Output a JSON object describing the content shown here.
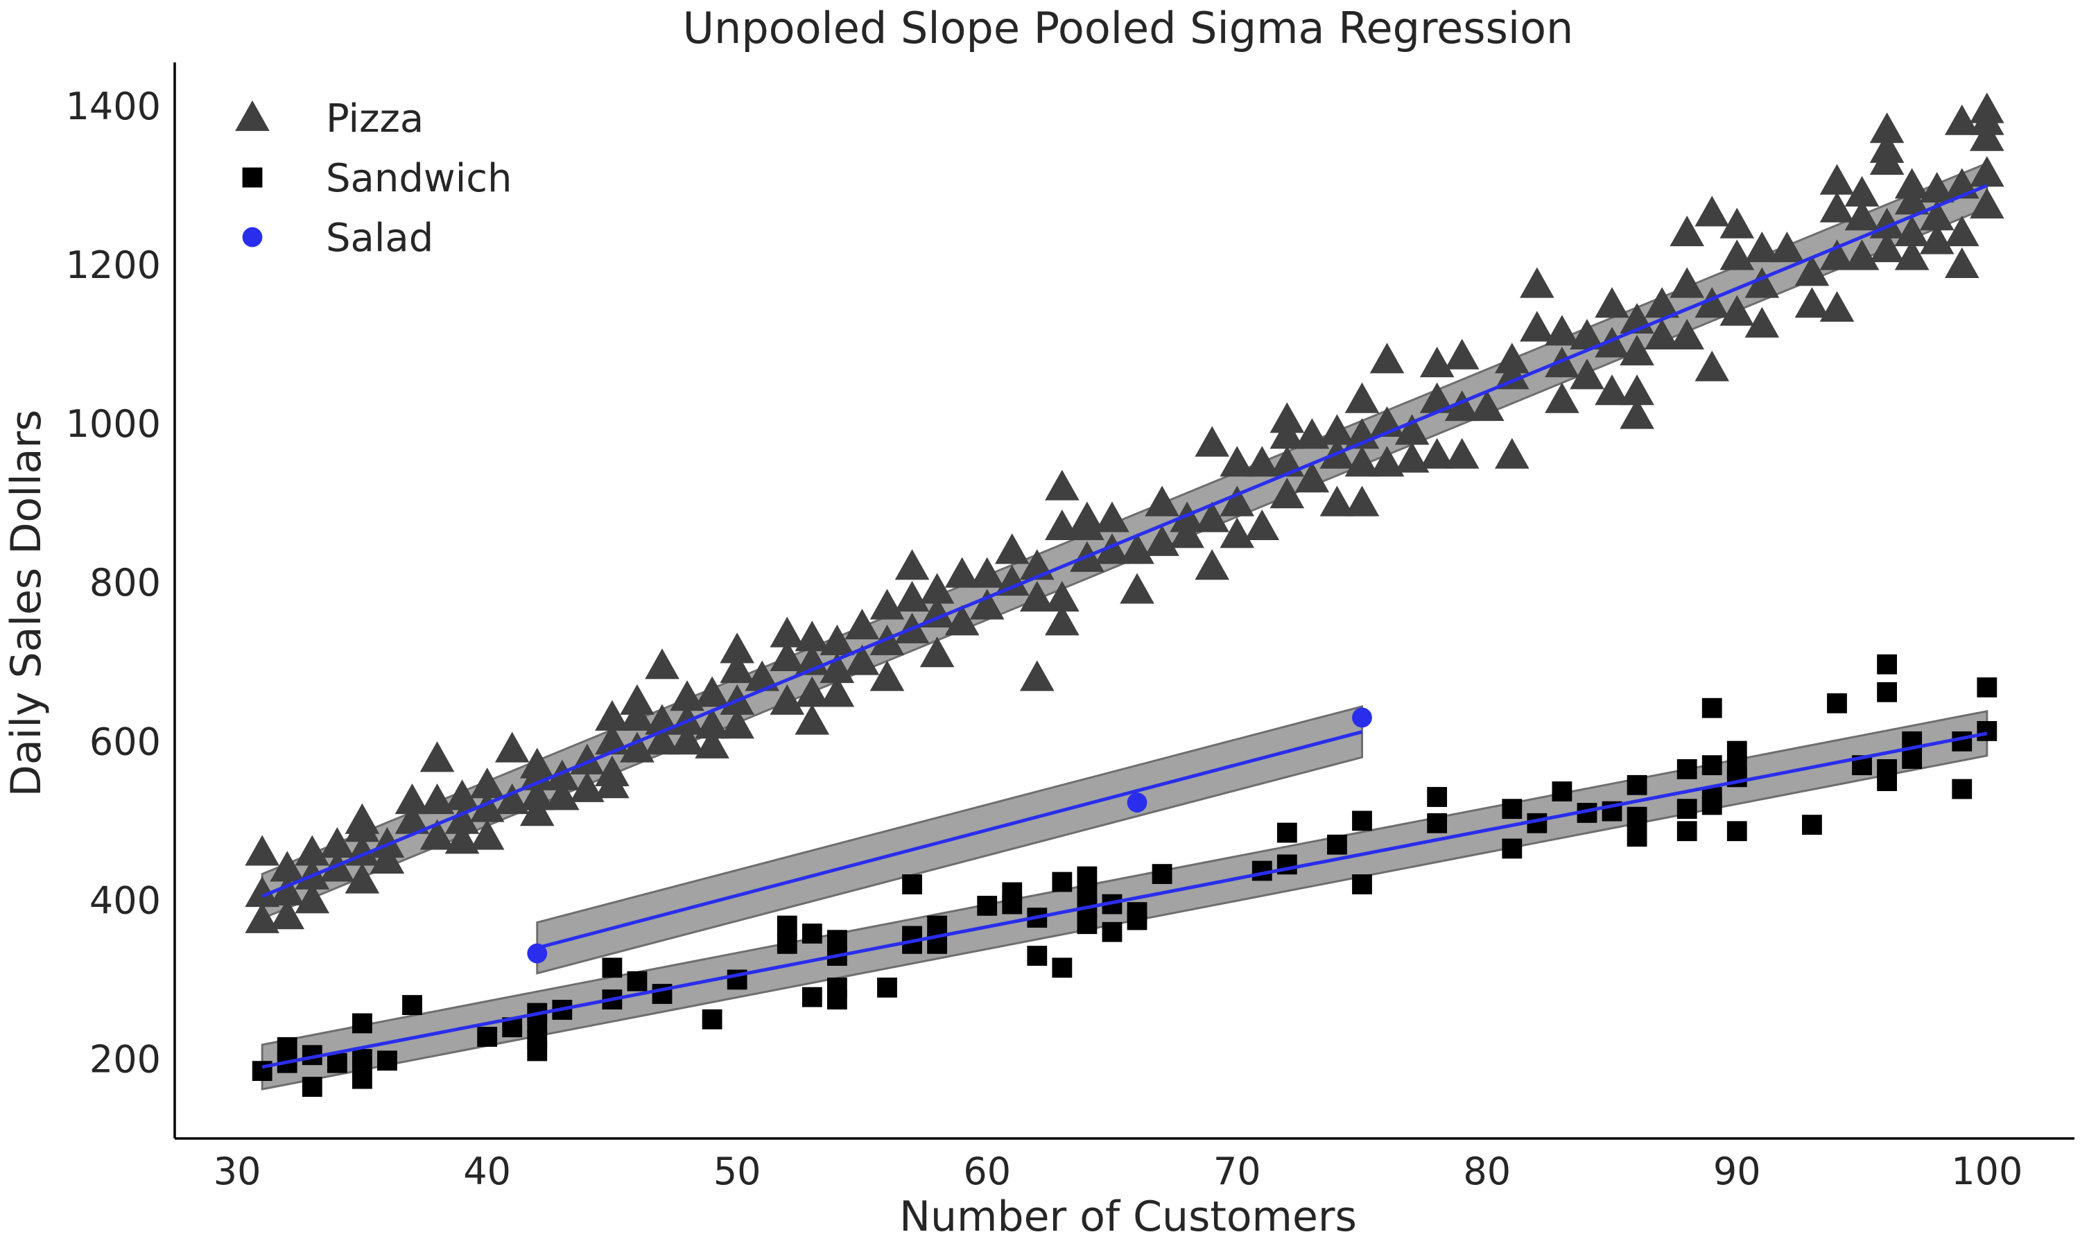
{
  "chart_data": {
    "type": "scatter",
    "title": "Unpooled Slope Pooled Sigma Regression",
    "xlabel": "Number of Customers",
    "ylabel": "Daily Sales Dollars",
    "xlim": [
      27.5,
      103.5
    ],
    "ylim": [
      100,
      1455
    ],
    "xticks": [
      30,
      40,
      50,
      60,
      70,
      80,
      90,
      100
    ],
    "yticks": [
      200,
      400,
      600,
      800,
      1000,
      1200,
      1400
    ],
    "grid": false,
    "legend_position": "top-left",
    "series": [
      {
        "name": "Pizza",
        "marker": "triangle",
        "color": "#404040",
        "points": [
          [
            31,
            375
          ],
          [
            31,
            408
          ],
          [
            31,
            460
          ],
          [
            32,
            380
          ],
          [
            32,
            410
          ],
          [
            32,
            440
          ],
          [
            33,
            400
          ],
          [
            33,
            430
          ],
          [
            33,
            460
          ],
          [
            34,
            440
          ],
          [
            34,
            470
          ],
          [
            35,
            425
          ],
          [
            35,
            460
          ],
          [
            35,
            490
          ],
          [
            35,
            500
          ],
          [
            36,
            450
          ],
          [
            36,
            470
          ],
          [
            37,
            500
          ],
          [
            37,
            525
          ],
          [
            38,
            480
          ],
          [
            38,
            525
          ],
          [
            38,
            578
          ],
          [
            39,
            475
          ],
          [
            39,
            500
          ],
          [
            39,
            530
          ],
          [
            40,
            480
          ],
          [
            40,
            515
          ],
          [
            40,
            545
          ],
          [
            41,
            525
          ],
          [
            41,
            590
          ],
          [
            42,
            510
          ],
          [
            42,
            530
          ],
          [
            42,
            555
          ],
          [
            42,
            570
          ],
          [
            43,
            530
          ],
          [
            43,
            555
          ],
          [
            44,
            540
          ],
          [
            44,
            575
          ],
          [
            45,
            545
          ],
          [
            45,
            560
          ],
          [
            45,
            600
          ],
          [
            45,
            630
          ],
          [
            46,
            590
          ],
          [
            46,
            630
          ],
          [
            46,
            650
          ],
          [
            47,
            600
          ],
          [
            47,
            625
          ],
          [
            47,
            695
          ],
          [
            48,
            600
          ],
          [
            48,
            625
          ],
          [
            48,
            655
          ],
          [
            49,
            595
          ],
          [
            49,
            620
          ],
          [
            49,
            660
          ],
          [
            50,
            620
          ],
          [
            50,
            650
          ],
          [
            50,
            690
          ],
          [
            50,
            715
          ],
          [
            51,
            680
          ],
          [
            52,
            650
          ],
          [
            52,
            705
          ],
          [
            52,
            735
          ],
          [
            53,
            625
          ],
          [
            53,
            660
          ],
          [
            53,
            700
          ],
          [
            53,
            730
          ],
          [
            54,
            660
          ],
          [
            54,
            690
          ],
          [
            54,
            725
          ],
          [
            55,
            700
          ],
          [
            55,
            745
          ],
          [
            56,
            680
          ],
          [
            56,
            725
          ],
          [
            56,
            770
          ],
          [
            57,
            740
          ],
          [
            57,
            780
          ],
          [
            57,
            820
          ],
          [
            58,
            710
          ],
          [
            58,
            760
          ],
          [
            58,
            790
          ],
          [
            59,
            750
          ],
          [
            59,
            810
          ],
          [
            60,
            770
          ],
          [
            60,
            810
          ],
          [
            61,
            800
          ],
          [
            61,
            840
          ],
          [
            62,
            680
          ],
          [
            62,
            780
          ],
          [
            62,
            820
          ],
          [
            63,
            750
          ],
          [
            63,
            780
          ],
          [
            63,
            870
          ],
          [
            63,
            920
          ],
          [
            64,
            830
          ],
          [
            64,
            870
          ],
          [
            64,
            880
          ],
          [
            65,
            840
          ],
          [
            65,
            880
          ],
          [
            66,
            790
          ],
          [
            66,
            840
          ],
          [
            67,
            850
          ],
          [
            67,
            900
          ],
          [
            68,
            860
          ],
          [
            68,
            880
          ],
          [
            69,
            820
          ],
          [
            69,
            880
          ],
          [
            69,
            975
          ],
          [
            70,
            860
          ],
          [
            70,
            900
          ],
          [
            70,
            950
          ],
          [
            71,
            870
          ],
          [
            71,
            950
          ],
          [
            72,
            910
          ],
          [
            72,
            950
          ],
          [
            72,
            985
          ],
          [
            72,
            1005
          ],
          [
            73,
            930
          ],
          [
            73,
            985
          ],
          [
            74,
            900
          ],
          [
            74,
            960
          ],
          [
            74,
            990
          ],
          [
            75,
            900
          ],
          [
            75,
            950
          ],
          [
            75,
            985
          ],
          [
            75,
            1030
          ],
          [
            76,
            950
          ],
          [
            76,
            1000
          ],
          [
            76,
            1080
          ],
          [
            77,
            955
          ],
          [
            77,
            990
          ],
          [
            78,
            960
          ],
          [
            78,
            1030
          ],
          [
            78,
            1075
          ],
          [
            79,
            960
          ],
          [
            79,
            1020
          ],
          [
            79,
            1085
          ],
          [
            80,
            1020
          ],
          [
            81,
            960
          ],
          [
            81,
            1060
          ],
          [
            81,
            1080
          ],
          [
            82,
            1120
          ],
          [
            82,
            1175
          ],
          [
            83,
            1030
          ],
          [
            83,
            1075
          ],
          [
            83,
            1115
          ],
          [
            84,
            1060
          ],
          [
            84,
            1110
          ],
          [
            85,
            1040
          ],
          [
            85,
            1100
          ],
          [
            85,
            1150
          ],
          [
            86,
            1010
          ],
          [
            86,
            1040
          ],
          [
            86,
            1090
          ],
          [
            86,
            1130
          ],
          [
            87,
            1110
          ],
          [
            87,
            1150
          ],
          [
            88,
            1110
          ],
          [
            88,
            1175
          ],
          [
            88,
            1240
          ],
          [
            89,
            1070
          ],
          [
            89,
            1150
          ],
          [
            89,
            1265
          ],
          [
            90,
            1140
          ],
          [
            90,
            1210
          ],
          [
            90,
            1250
          ],
          [
            91,
            1125
          ],
          [
            91,
            1175
          ],
          [
            91,
            1220
          ],
          [
            92,
            1220
          ],
          [
            93,
            1150
          ],
          [
            93,
            1190
          ],
          [
            94,
            1145
          ],
          [
            94,
            1210
          ],
          [
            94,
            1270
          ],
          [
            94,
            1305
          ],
          [
            95,
            1210
          ],
          [
            95,
            1260
          ],
          [
            95,
            1290
          ],
          [
            96,
            1220
          ],
          [
            96,
            1250
          ],
          [
            96,
            1330
          ],
          [
            96,
            1345
          ],
          [
            96,
            1370
          ],
          [
            97,
            1210
          ],
          [
            97,
            1240
          ],
          [
            97,
            1280
          ],
          [
            97,
            1300
          ],
          [
            98,
            1230
          ],
          [
            98,
            1260
          ],
          [
            98,
            1295
          ],
          [
            99,
            1200
          ],
          [
            99,
            1240
          ],
          [
            99,
            1300
          ],
          [
            99,
            1380
          ],
          [
            100,
            1275
          ],
          [
            100,
            1315
          ],
          [
            100,
            1360
          ],
          [
            100,
            1380
          ],
          [
            100,
            1395
          ]
        ]
      },
      {
        "name": "Sandwich",
        "marker": "square",
        "color": "#000000",
        "points": [
          [
            31,
            185
          ],
          [
            32,
            195
          ],
          [
            32,
            215
          ],
          [
            33,
            165
          ],
          [
            33,
            205
          ],
          [
            34,
            195
          ],
          [
            35,
            175
          ],
          [
            35,
            200
          ],
          [
            35,
            245
          ],
          [
            36,
            198
          ],
          [
            37,
            268
          ],
          [
            40,
            228
          ],
          [
            41,
            240
          ],
          [
            42,
            210
          ],
          [
            42,
            225
          ],
          [
            42,
            245
          ],
          [
            42,
            258
          ],
          [
            43,
            262
          ],
          [
            45,
            275
          ],
          [
            45,
            315
          ],
          [
            46,
            298
          ],
          [
            47,
            282
          ],
          [
            49,
            250
          ],
          [
            50,
            300
          ],
          [
            52,
            345
          ],
          [
            52,
            368
          ],
          [
            53,
            278
          ],
          [
            53,
            358
          ],
          [
            54,
            275
          ],
          [
            54,
            290
          ],
          [
            54,
            330
          ],
          [
            54,
            350
          ],
          [
            56,
            290
          ],
          [
            57,
            345
          ],
          [
            57,
            355
          ],
          [
            57,
            420
          ],
          [
            58,
            345
          ],
          [
            58,
            368
          ],
          [
            60,
            393
          ],
          [
            61,
            395
          ],
          [
            61,
            410
          ],
          [
            62,
            330
          ],
          [
            62,
            378
          ],
          [
            63,
            315
          ],
          [
            63,
            423
          ],
          [
            64,
            370
          ],
          [
            64,
            390
          ],
          [
            64,
            410
          ],
          [
            64,
            430
          ],
          [
            65,
            360
          ],
          [
            65,
            395
          ],
          [
            66,
            375
          ],
          [
            66,
            385
          ],
          [
            67,
            433
          ],
          [
            71,
            437
          ],
          [
            72,
            445
          ],
          [
            72,
            485
          ],
          [
            74,
            470
          ],
          [
            75,
            420
          ],
          [
            75,
            500
          ],
          [
            78,
            497
          ],
          [
            78,
            530
          ],
          [
            81,
            465
          ],
          [
            81,
            515
          ],
          [
            82,
            497
          ],
          [
            83,
            537
          ],
          [
            84,
            510
          ],
          [
            85,
            512
          ],
          [
            86,
            480
          ],
          [
            86,
            505
          ],
          [
            86,
            545
          ],
          [
            88,
            487
          ],
          [
            88,
            515
          ],
          [
            88,
            565
          ],
          [
            89,
            520
          ],
          [
            89,
            530
          ],
          [
            89,
            570
          ],
          [
            89,
            642
          ],
          [
            90,
            487
          ],
          [
            90,
            555
          ],
          [
            90,
            565
          ],
          [
            90,
            588
          ],
          [
            93,
            495
          ],
          [
            94,
            648
          ],
          [
            95,
            570
          ],
          [
            96,
            550
          ],
          [
            96,
            565
          ],
          [
            96,
            662
          ],
          [
            96,
            697
          ],
          [
            97,
            578
          ],
          [
            97,
            600
          ],
          [
            99,
            540
          ],
          [
            99,
            600
          ],
          [
            100,
            613
          ],
          [
            100,
            668
          ]
        ]
      },
      {
        "name": "Salad",
        "marker": "circle",
        "color": "#2a2eec",
        "points": [
          [
            42,
            333
          ],
          [
            66,
            523
          ],
          [
            75,
            630
          ]
        ]
      }
    ],
    "fits": [
      {
        "name": "Pizza fit",
        "x": [
          31,
          100
        ],
        "y": [
          405,
          1300
        ],
        "band_halfwidth": 28
      },
      {
        "name": "Sandwich fit",
        "x": [
          31,
          100
        ],
        "y": [
          190,
          610
        ],
        "band_halfwidth": 28
      },
      {
        "name": "Salad fit",
        "x": [
          42,
          75
        ],
        "y": [
          340,
          612
        ],
        "band_halfwidth": 32
      }
    ],
    "line_color": "#2a2eec",
    "band_color": "#9e9e9e"
  }
}
